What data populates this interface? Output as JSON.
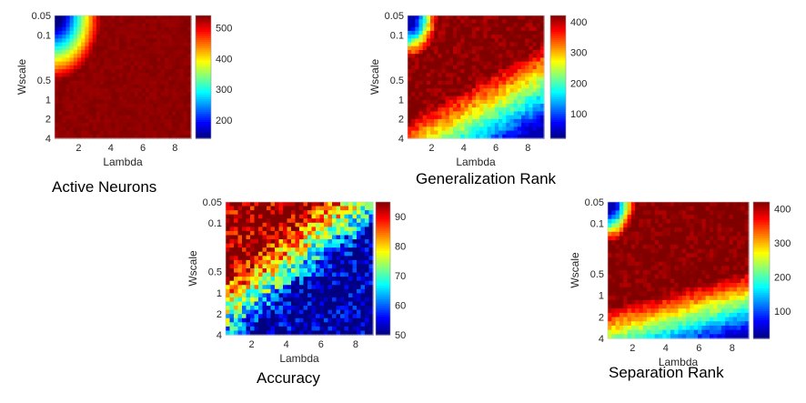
{
  "chart_data": [
    {
      "type": "heatmap",
      "caption": "Active Neurons",
      "xlabel": "Lambda",
      "ylabel": "Wscale",
      "xticks": [
        "2",
        "4",
        "6",
        "8"
      ],
      "yticks": [
        "0.05",
        "0.1",
        "0.5",
        "1",
        "2",
        "4"
      ],
      "xlim": [
        0.5,
        9
      ],
      "ylim": [
        0.05,
        4
      ],
      "y_scale": "log",
      "colorbar_ticks": [
        "200",
        "300",
        "400",
        "500"
      ],
      "colorbar_range": [
        140,
        540
      ],
      "colormap": "jet",
      "surface": "smooth transition from low values at small Lambda / small Wscale (top-left) to saturated high values (~540) over most of the grid"
    },
    {
      "type": "heatmap",
      "caption": "Generalization Rank",
      "xlabel": "Lambda",
      "ylabel": "Wscale",
      "xticks": [
        "2",
        "4",
        "6",
        "8"
      ],
      "yticks": [
        "0.05",
        "0.1",
        "0.5",
        "1",
        "2",
        "4"
      ],
      "xlim": [
        0.5,
        9
      ],
      "ylim": [
        0.05,
        4
      ],
      "y_scale": "log",
      "colorbar_ticks": [
        "100",
        "200",
        "300",
        "400"
      ],
      "colorbar_range": [
        20,
        420
      ],
      "colormap": "jet",
      "surface": "low at top-left edge, high (~400) across the middle, decreasing toward large Lambda and large Wscale (bottom-right)"
    },
    {
      "type": "heatmap",
      "caption": "Accuracy",
      "xlabel": "Lambda",
      "ylabel": "Wscale",
      "xticks": [
        "2",
        "4",
        "6",
        "8"
      ],
      "yticks": [
        "0.05",
        "0.1",
        "0.5",
        "1",
        "2",
        "4"
      ],
      "xlim": [
        0.5,
        9
      ],
      "ylim": [
        0.05,
        4
      ],
      "y_scale": "log",
      "colorbar_ticks": [
        "50",
        "60",
        "70",
        "80",
        "90"
      ],
      "colorbar_range": [
        50,
        95
      ],
      "colormap": "jet",
      "surface": "high (~95) at small Lambda / small Wscale (top-left), dropping to ~50 over the bottom-right region, noisy boundary"
    },
    {
      "type": "heatmap",
      "caption": "Separation Rank",
      "xlabel": "Lambda",
      "ylabel": "Wscale",
      "xticks": [
        "2",
        "4",
        "6",
        "8"
      ],
      "yticks": [
        "0.05",
        "0.1",
        "0.5",
        "1",
        "2",
        "4"
      ],
      "xlim": [
        0.5,
        9
      ],
      "ylim": [
        0.05,
        4
      ],
      "y_scale": "log",
      "colorbar_ticks": [
        "100",
        "200",
        "300",
        "400"
      ],
      "colorbar_range": [
        20,
        420
      ],
      "colormap": "jet",
      "surface": "low at top-left edge, high (~400) over the upper-middle, decreasing toward large Wscale at bottom"
    }
  ]
}
